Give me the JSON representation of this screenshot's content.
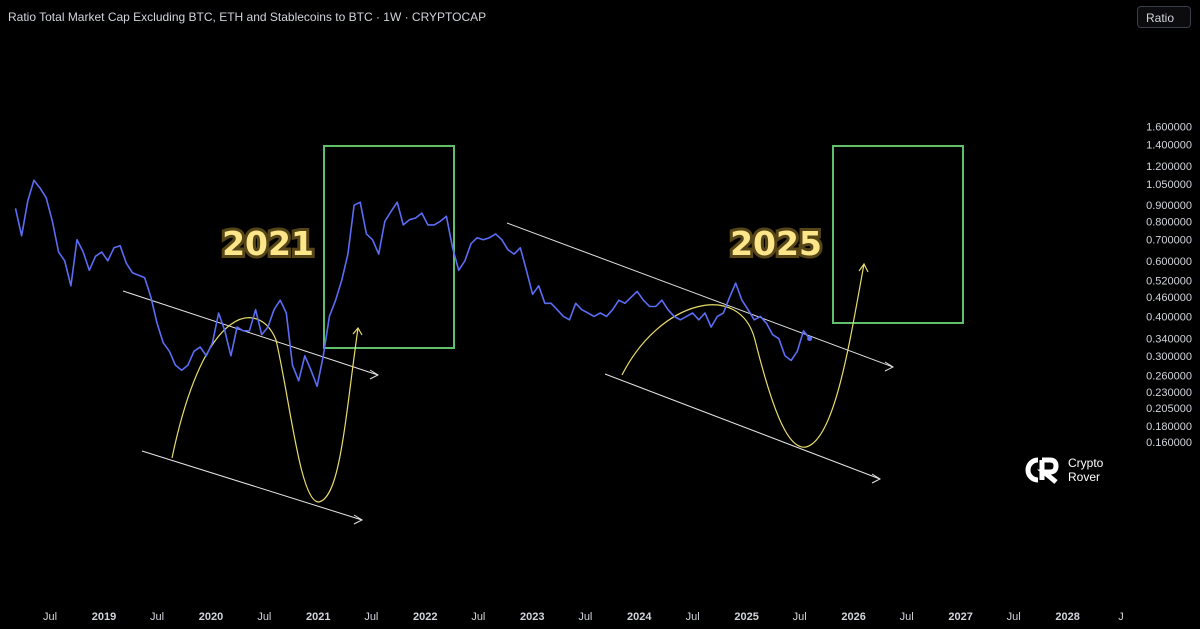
{
  "header": {
    "title": "Ratio Total Market Cap Excluding BTC, ETH and Stablecoins to BTC · 1W · CRYPTOCAP",
    "scale_button": "Ratio"
  },
  "brand": {
    "name_line1": "Crypto",
    "name_line2": "Rover"
  },
  "colors": {
    "line": "#5b6cf5",
    "curve": "#e8dc6a",
    "box": "#5fbf6a",
    "trend": "#e6e6e6",
    "label": "#fde68a"
  },
  "chart_data": {
    "type": "line",
    "scale": "log",
    "ylim": [
      0.15,
      1.75
    ],
    "y_ticks": [
      "1.600000",
      "1.400000",
      "1.200000",
      "1.050000",
      "0.900000",
      "0.800000",
      "0.700000",
      "0.600000",
      "0.520000",
      "0.460000",
      "0.400000",
      "0.340000",
      "0.300000",
      "0.260000",
      "0.230000",
      "0.205000",
      "0.180000",
      "0.160000"
    ],
    "x_ticks": [
      "Jul",
      "2019",
      "Jul",
      "2020",
      "Jul",
      "2021",
      "Jul",
      "2022",
      "Jul",
      "2023",
      "Jul",
      "2024",
      "Jul",
      "2025",
      "Jul",
      "2026",
      "Jul",
      "2027",
      "Jul",
      "2028",
      "J"
    ],
    "xlim": [
      "2018-03-01",
      "2028-08-01"
    ],
    "annotations": [
      {
        "type": "text",
        "text": "2021"
      },
      {
        "type": "text",
        "text": "2025"
      }
    ],
    "series": [
      {
        "x": [
          "2018-03-05",
          "2018-03-26",
          "2018-04-16",
          "2018-05-07",
          "2018-05-28",
          "2018-06-18",
          "2018-07-09",
          "2018-07-30",
          "2018-08-20",
          "2018-09-10",
          "2018-10-01",
          "2018-10-22",
          "2018-11-12",
          "2018-12-03",
          "2018-12-24",
          "2019-01-14",
          "2019-02-04",
          "2019-02-25",
          "2019-03-18",
          "2019-04-08",
          "2019-04-29",
          "2019-05-20",
          "2019-06-10",
          "2019-07-01",
          "2019-07-22",
          "2019-08-12",
          "2019-09-02",
          "2019-09-23",
          "2019-10-14",
          "2019-11-04",
          "2019-11-25",
          "2019-12-16",
          "2020-01-06",
          "2020-01-27",
          "2020-02-17",
          "2020-03-09",
          "2020-03-30",
          "2020-04-20",
          "2020-05-11",
          "2020-06-01",
          "2020-06-22",
          "2020-07-13",
          "2020-08-03",
          "2020-08-24",
          "2020-09-14",
          "2020-10-05",
          "2020-10-26",
          "2020-11-16",
          "2020-12-07",
          "2020-12-28",
          "2021-01-18",
          "2021-02-08",
          "2021-03-01",
          "2021-03-22",
          "2021-04-12",
          "2021-05-03",
          "2021-05-24",
          "2021-06-14",
          "2021-07-05",
          "2021-07-26",
          "2021-08-16",
          "2021-09-06",
          "2021-09-27",
          "2021-10-18",
          "2021-11-08",
          "2021-11-29",
          "2021-12-20",
          "2022-01-10",
          "2022-01-31",
          "2022-02-21",
          "2022-03-14",
          "2022-04-04",
          "2022-04-25",
          "2022-05-16",
          "2022-06-06",
          "2022-06-27",
          "2022-07-18",
          "2022-08-08",
          "2022-08-29",
          "2022-09-19",
          "2022-10-10",
          "2022-10-31",
          "2022-11-21",
          "2022-12-12",
          "2023-01-02",
          "2023-01-23",
          "2023-02-13",
          "2023-03-06",
          "2023-03-27",
          "2023-04-17",
          "2023-05-08",
          "2023-05-29",
          "2023-06-19",
          "2023-07-10",
          "2023-07-31",
          "2023-08-21",
          "2023-09-11",
          "2023-10-02",
          "2023-10-23",
          "2023-11-13",
          "2023-12-04",
          "2023-12-25",
          "2024-01-15",
          "2024-02-05",
          "2024-02-26",
          "2024-03-18",
          "2024-04-08",
          "2024-04-29",
          "2024-05-20",
          "2024-06-10",
          "2024-07-01",
          "2024-07-22",
          "2024-08-12",
          "2024-09-02",
          "2024-09-23",
          "2024-10-14",
          "2024-11-04",
          "2024-11-25",
          "2024-12-16",
          "2025-01-06",
          "2025-01-27",
          "2025-02-17",
          "2025-03-10",
          "2025-03-31",
          "2025-04-21",
          "2025-05-12",
          "2025-06-02",
          "2025-06-23",
          "2025-07-14",
          "2025-08-04"
        ],
        "values": [
          0.88,
          0.72,
          0.93,
          1.08,
          1.02,
          0.95,
          0.8,
          0.64,
          0.6,
          0.5,
          0.7,
          0.64,
          0.56,
          0.62,
          0.64,
          0.6,
          0.66,
          0.67,
          0.59,
          0.55,
          0.54,
          0.53,
          0.46,
          0.38,
          0.33,
          0.31,
          0.28,
          0.27,
          0.28,
          0.31,
          0.32,
          0.3,
          0.33,
          0.41,
          0.36,
          0.3,
          0.37,
          0.36,
          0.36,
          0.42,
          0.35,
          0.37,
          0.42,
          0.45,
          0.41,
          0.28,
          0.25,
          0.3,
          0.27,
          0.24,
          0.3,
          0.4,
          0.45,
          0.52,
          0.63,
          0.9,
          0.92,
          0.73,
          0.7,
          0.63,
          0.8,
          0.86,
          0.92,
          0.78,
          0.81,
          0.82,
          0.85,
          0.78,
          0.78,
          0.8,
          0.83,
          0.66,
          0.56,
          0.6,
          0.68,
          0.71,
          0.7,
          0.71,
          0.73,
          0.7,
          0.65,
          0.63,
          0.66,
          0.56,
          0.47,
          0.5,
          0.44,
          0.44,
          0.42,
          0.4,
          0.39,
          0.44,
          0.42,
          0.41,
          0.4,
          0.41,
          0.4,
          0.42,
          0.45,
          0.44,
          0.46,
          0.48,
          0.45,
          0.43,
          0.43,
          0.45,
          0.42,
          0.4,
          0.39,
          0.4,
          0.41,
          0.39,
          0.41,
          0.37,
          0.4,
          0.41,
          0.46,
          0.51,
          0.45,
          0.42,
          0.39,
          0.4,
          0.38,
          0.35,
          0.34,
          0.3,
          0.29,
          0.31,
          0.36,
          0.34
        ]
      }
    ]
  }
}
